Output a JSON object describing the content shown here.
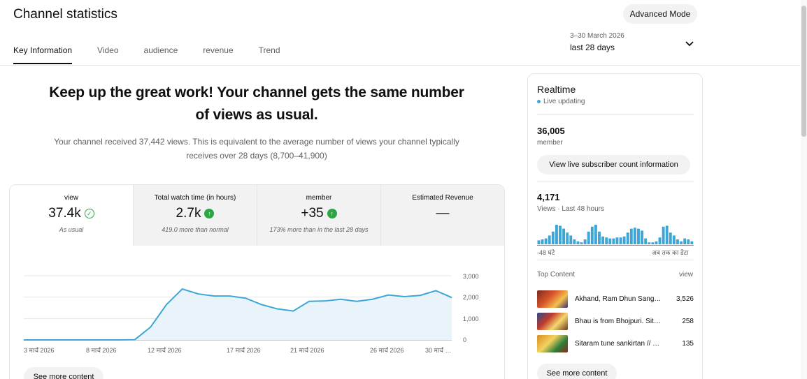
{
  "header": {
    "title": "Channel statistics",
    "advanced_mode": "Advanced Mode",
    "tabs": [
      "Key Information",
      "Video",
      "audience",
      "revenue",
      "Trend"
    ],
    "date_range": "3–30 March 2026",
    "date_label": "last 28 days"
  },
  "summary": {
    "headline": "Keep up the great work! Your channel gets the same number of views as usual.",
    "description": "Your channel received 37,442 views. This is equivalent to the average number of views your channel typically receives over 28 days (8,700–41,900)"
  },
  "metrics": [
    {
      "label": "view",
      "value": "37.4k",
      "note": "As usual",
      "status": "ok"
    },
    {
      "label": "Total watch time (in hours)",
      "value": "2.7k",
      "note": "419.0 more than normal",
      "status": "up"
    },
    {
      "label": "member",
      "value": "+35",
      "note": "173% more than in the last 28 days",
      "status": "up"
    },
    {
      "label": "Estimated Revenue",
      "value": "—",
      "note": "",
      "status": "none"
    }
  ],
  "chart_data": {
    "type": "area",
    "x": [
      "3 मार्च 2026",
      "4",
      "5",
      "6",
      "7",
      "8 मार्च 2026",
      "9",
      "10",
      "11",
      "12 मार्च 2026",
      "13",
      "14",
      "15",
      "16",
      "17 मार्च 2026",
      "18",
      "19",
      "20",
      "21 मार्च 2026",
      "22",
      "23",
      "24",
      "25",
      "26 मार्च 2026",
      "27",
      "28",
      "29",
      "30 मार्च 2026"
    ],
    "values": [
      0,
      0,
      0,
      0,
      0,
      0,
      0,
      10,
      600,
      1650,
      2380,
      2150,
      2050,
      2050,
      1950,
      1650,
      1450,
      1350,
      1800,
      1820,
      1900,
      1800,
      1900,
      2100,
      2020,
      2080,
      2300,
      1980
    ],
    "xtick_labels": [
      "3 मार्च 2026",
      "8 मार्च 2026",
      "12 मार्च 2026",
      "17 मार्च 2026",
      "21 मार्च 2026",
      "26 मार्च 2026",
      "30 मार्च …"
    ],
    "ytick_labels": [
      "3,000",
      "2,000",
      "1,000",
      "0"
    ],
    "ylim": [
      0,
      3000
    ],
    "line_color": "#3ea6d6",
    "fill_color": "#e8f4fa"
  },
  "see_more_left": "See more content",
  "realtime": {
    "title": "Realtime",
    "live": "Live updating",
    "members": "36,005",
    "members_label": "member",
    "sub_button": "View live subscriber count information",
    "views": "4,171",
    "views_label": "Views · Last 48 hours",
    "bars": [
      4,
      5,
      6,
      9,
      13,
      20,
      19,
      16,
      12,
      9,
      5,
      3,
      2,
      5,
      13,
      18,
      20,
      13,
      8,
      7,
      6,
      6,
      7,
      7,
      8,
      12,
      16,
      17,
      16,
      14,
      6,
      2,
      2,
      3,
      7,
      18,
      19,
      12,
      9,
      5,
      3,
      6,
      5,
      3
    ],
    "bar_color": "#3ea6d6",
    "bar_left_label": "-48 घंटे",
    "bar_right_label": "अब तक का डेटा",
    "top_content_label": "Top Content",
    "top_content_metric": "view",
    "items": [
      {
        "title": "Akhand, Ram Dhun Sang…",
        "views": "3,526"
      },
      {
        "title": "Bhau is from Bhojpuri. Sita…",
        "views": "258"
      },
      {
        "title": "Sitaram tune sankirtan // J…",
        "views": "135"
      }
    ],
    "see_more": "See more content"
  }
}
